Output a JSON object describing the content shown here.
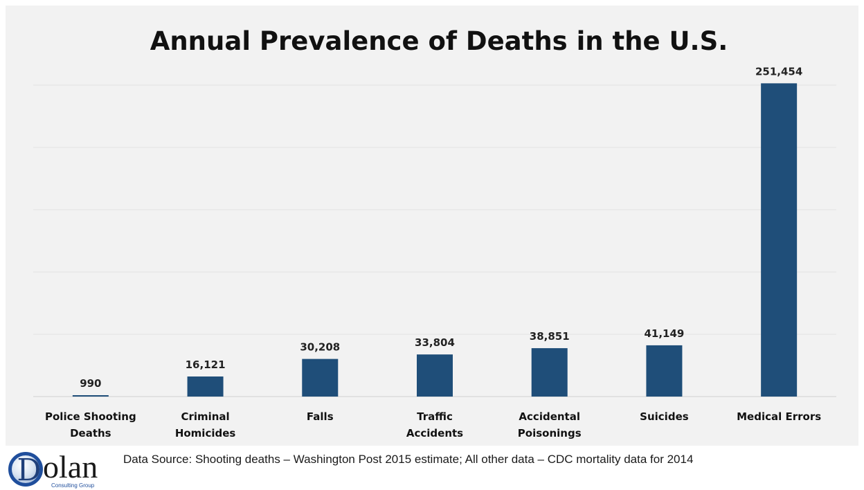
{
  "chart_data": {
    "type": "bar",
    "title": "Annual Prevalence of Deaths in the U.S.",
    "categories": [
      [
        "Police Shooting",
        "Deaths"
      ],
      [
        "Criminal",
        "Homicides"
      ],
      [
        "Falls"
      ],
      [
        "Traffic",
        "Accidents"
      ],
      [
        "Accidental",
        "Poisonings"
      ],
      [
        "Suicides"
      ],
      [
        "Medical Errors"
      ]
    ],
    "values": [
      990,
      16121,
      30208,
      33804,
      38851,
      41149,
      251454
    ],
    "value_labels": [
      "990",
      "16,121",
      "30,208",
      "33,804",
      "38,851",
      "41,149",
      "251,454"
    ],
    "ylim": [
      0,
      250000
    ],
    "grid": true,
    "bar_color": "#1f4e79",
    "background": "#f2f2f2"
  },
  "footer": {
    "logo": {
      "letter": "D",
      "text": "olan",
      "tagline": "Consulting Group"
    },
    "source_note": "Data Source:  Shooting deaths – Washington Post 2015 estimate; All other data – CDC mortality data for 2014"
  }
}
